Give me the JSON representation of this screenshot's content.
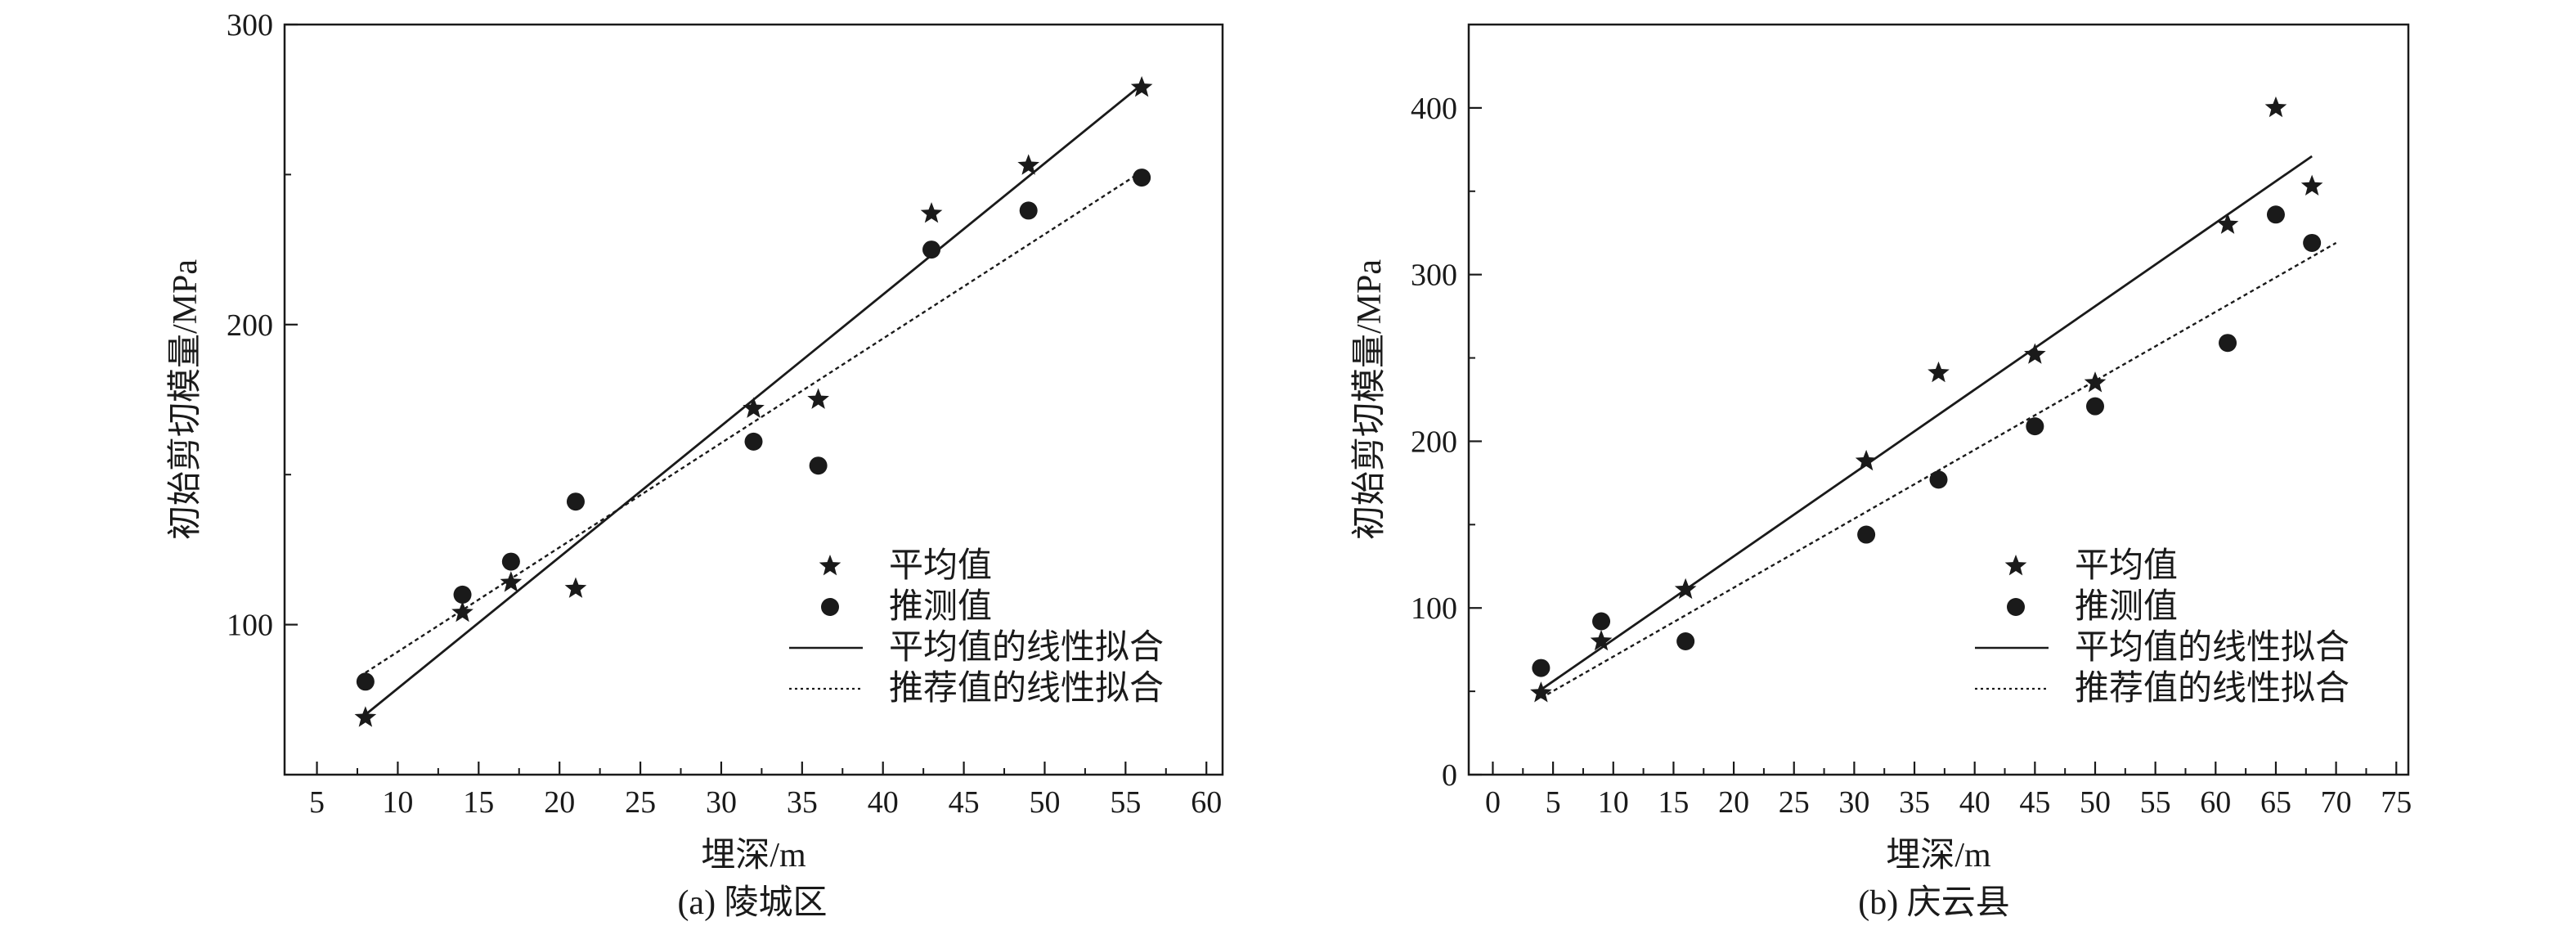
{
  "chart_data": [
    {
      "type": "scatter",
      "caption": "(a) 陵城区",
      "xlabel": "埋深/m",
      "ylabel": "初始剪切模量/MPa",
      "xlim": [
        3,
        61
      ],
      "ylim": [
        50,
        300
      ],
      "xticks": [
        5,
        10,
        15,
        20,
        25,
        30,
        35,
        40,
        45,
        50,
        55,
        60
      ],
      "yticks": [
        100,
        200,
        300
      ],
      "legend_position": "bottom-right",
      "series": [
        {
          "name": "平均值",
          "marker": "star",
          "x": [
            8,
            14,
            17,
            21,
            32,
            36,
            43,
            49,
            56
          ],
          "y": [
            69,
            104,
            114,
            112,
            172,
            175,
            237,
            253,
            279
          ]
        },
        {
          "name": "推测值",
          "marker": "circle",
          "x": [
            8,
            14,
            17,
            21,
            32,
            36,
            43,
            49,
            56
          ],
          "y": [
            81,
            110,
            121,
            141,
            161,
            153,
            225,
            238,
            249
          ]
        },
        {
          "name": "平均值的线性拟合",
          "marker": "line",
          "line_style": "solid",
          "x": [
            8,
            56
          ],
          "y": [
            70,
            280
          ]
        },
        {
          "name": "推荐值的线性拟合",
          "marker": "line",
          "line_style": "dotted",
          "x": [
            8,
            56
          ],
          "y": [
            84,
            251
          ]
        }
      ]
    },
    {
      "type": "scatter",
      "caption": "(b) 庆云县",
      "xlabel": "埋深/m",
      "ylabel": "初始剪切模量/MPa",
      "xlim": [
        -2,
        76
      ],
      "ylim": [
        0,
        450
      ],
      "xticks": [
        0,
        5,
        10,
        15,
        20,
        25,
        30,
        35,
        40,
        45,
        50,
        55,
        60,
        65,
        70,
        75
      ],
      "yticks": [
        0,
        100,
        200,
        300,
        400
      ],
      "legend_position": "bottom-right",
      "series": [
        {
          "name": "平均值",
          "marker": "star",
          "x": [
            4,
            9,
            16,
            31,
            37,
            45,
            50,
            61,
            65,
            68
          ],
          "y": [
            49,
            80,
            111,
            188,
            241,
            252,
            235,
            330,
            400,
            353
          ]
        },
        {
          "name": "推测值",
          "marker": "circle",
          "x": [
            4,
            9,
            16,
            31,
            37,
            45,
            50,
            61,
            65,
            68
          ],
          "y": [
            64,
            92,
            80,
            144,
            177,
            209,
            221,
            259,
            336,
            319
          ]
        },
        {
          "name": "平均值的线性拟合",
          "marker": "line",
          "line_style": "solid",
          "x": [
            4,
            68
          ],
          "y": [
            51,
            371
          ]
        },
        {
          "name": "推荐值的线性拟合",
          "marker": "line",
          "line_style": "dotted",
          "x": [
            4,
            70
          ],
          "y": [
            46,
            319
          ]
        }
      ]
    }
  ]
}
